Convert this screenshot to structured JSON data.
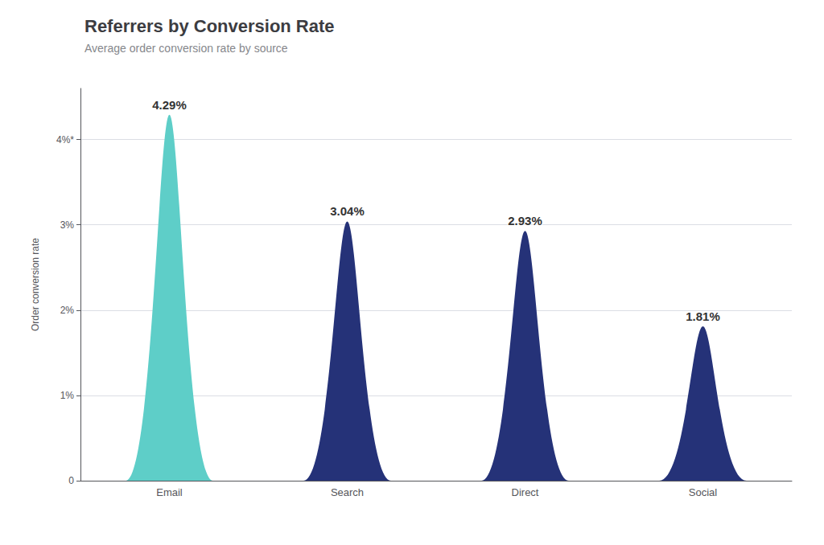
{
  "chart_data": {
    "type": "bar",
    "title": "Referrers by Conversion Rate",
    "subtitle": "Average order conversion rate by source",
    "categories": [
      "Email",
      "Search",
      "Direct",
      "Social"
    ],
    "values": [
      4.29,
      3.04,
      2.93,
      1.81
    ],
    "value_labels": [
      "4.29%",
      "3.04%",
      "2.93%",
      "1.81%"
    ],
    "colors": [
      "#5ecec8",
      "#253278",
      "#253278",
      "#253278"
    ],
    "ylabel": "Order conversion rate",
    "ylim": [
      0,
      4.6
    ],
    "yticks": [
      0,
      {
        "value": 1,
        "label": "1%"
      },
      {
        "value": 2,
        "label": "2%"
      },
      {
        "value": 3,
        "label": "3%"
      },
      {
        "value": 4,
        "label": "4%*"
      }
    ],
    "grid": true,
    "data_labels": true
  }
}
